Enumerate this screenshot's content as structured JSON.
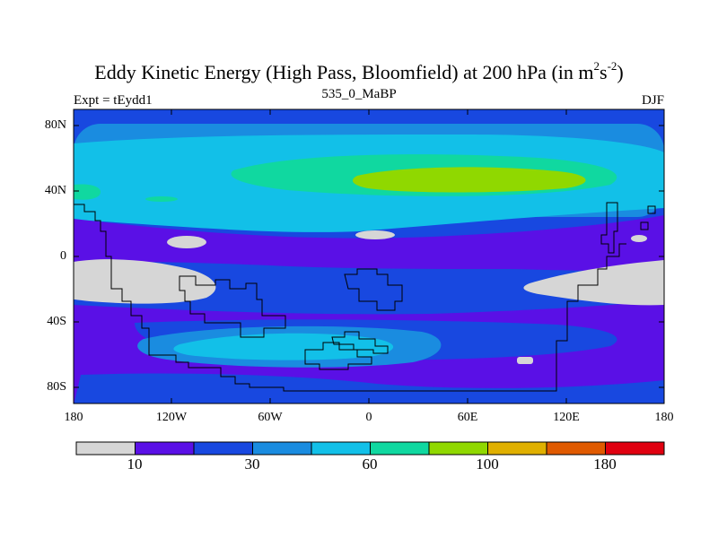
{
  "header": {
    "title_main": "Eddy Kinetic Energy (High Pass, Bloomfield) at 200 hPa (in m",
    "sup1": "2",
    "title_mid": "s",
    "sup2": "-2",
    "title_end": ")",
    "left_label": "Expt = tEydd1",
    "center_label": "535_0_MaBP",
    "right_label": "DJF"
  },
  "map": {
    "lat_ticks": [
      "80N",
      "40N",
      "0",
      "40S",
      "80S"
    ],
    "lon_ticks": [
      "180",
      "120W",
      "60W",
      "0",
      "60E",
      "120E",
      "180"
    ]
  },
  "colorbar": {
    "colors": [
      "#d6d6d6",
      "#5a10e6",
      "#1848e0",
      "#1a8ce0",
      "#12c0e8",
      "#10d8a0",
      "#90d800",
      "#e0b000",
      "#e05a00",
      "#e00010"
    ],
    "labels": [
      "10",
      "30",
      "60",
      "100",
      "180"
    ]
  },
  "colors": {
    "land_outline": "#000000",
    "grey": "#d6d6d6",
    "violet": "#5a10e6",
    "blue": "#1848e0",
    "mid_blue": "#1a8ce0",
    "cyan": "#12c0e8",
    "teal": "#10d8a0",
    "lime": "#90d800"
  }
}
